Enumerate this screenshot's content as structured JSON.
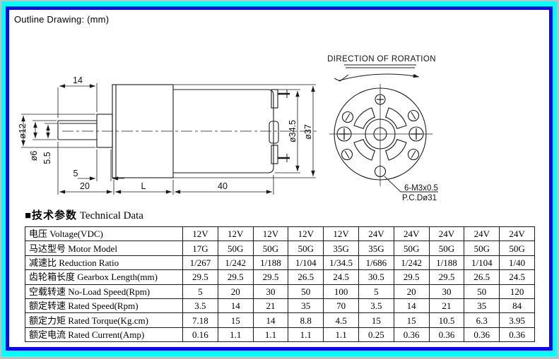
{
  "window": {
    "outline_label": "Outline Drawing: (mm)"
  },
  "colors": {
    "frame_cyan": "#00ffff",
    "frame_blue": "#0a0aee",
    "frame_gray": "#c0c0c0",
    "line": "#1a1a1a"
  },
  "drawing": {
    "dims": {
      "d14": "14",
      "d12": "ø12",
      "d6": "ø6",
      "d55": "5.5",
      "d5": "5",
      "d20": "20",
      "dL": "L",
      "d40": "40",
      "d345": "ø34.5",
      "d37": "ø37"
    },
    "front": {
      "direction_label": "DIRECTION OF RORATION",
      "screw_spec": "6-M3x0.5",
      "pitch_circle": "P.C.Dø31"
    }
  },
  "section": {
    "title_cn": "■技术参数",
    "title_en": "Technical Data"
  },
  "table": {
    "rows": [
      {
        "label": "电压 Voltage(VDC)",
        "values": [
          "12V",
          "12V",
          "12V",
          "12V",
          "12V",
          "24V",
          "24V",
          "24V",
          "24V",
          "24V"
        ]
      },
      {
        "label": "马达型号 Motor Model",
        "values": [
          "17G",
          "50G",
          "50G",
          "50G",
          "35G",
          "35G",
          "50G",
          "50G",
          "50G",
          "50G"
        ]
      },
      {
        "label": "减速比 Reduction Ratio",
        "values": [
          "1/267",
          "1/242",
          "1/188",
          "1/104",
          "1/34.5",
          "1/686",
          "1/242",
          "1/188",
          "1/104",
          "1/40"
        ]
      },
      {
        "label": "齿轮箱长度 Gearbox Length(mm)",
        "values": [
          "29.5",
          "29.5",
          "29.5",
          "26.5",
          "24.5",
          "30.5",
          "29.5",
          "29.5",
          "26.5",
          "24.5"
        ]
      },
      {
        "label": "空载转速 No-Load Speed(Rpm)",
        "values": [
          "5",
          "20",
          "30",
          "50",
          "100",
          "5",
          "20",
          "30",
          "50",
          "120"
        ]
      },
      {
        "label": "额定转速 Rated Speed(Rpm)",
        "values": [
          "3.5",
          "14",
          "21",
          "35",
          "70",
          "3.5",
          "14",
          "21",
          "35",
          "84"
        ]
      },
      {
        "label": "额定力矩 Rated Torque(Kg.cm)",
        "values": [
          "7.18",
          "15",
          "14",
          "8.8",
          "4.5",
          "15",
          "15",
          "10.5",
          "6.3",
          "3.95"
        ]
      },
      {
        "label": "额定电流 Rated Current(Amp)",
        "values": [
          "0.16",
          "1.1",
          "1.1",
          "1.1",
          "1.1",
          "0.25",
          "0.36",
          "0.36",
          "0.36",
          "0.36"
        ]
      }
    ]
  }
}
